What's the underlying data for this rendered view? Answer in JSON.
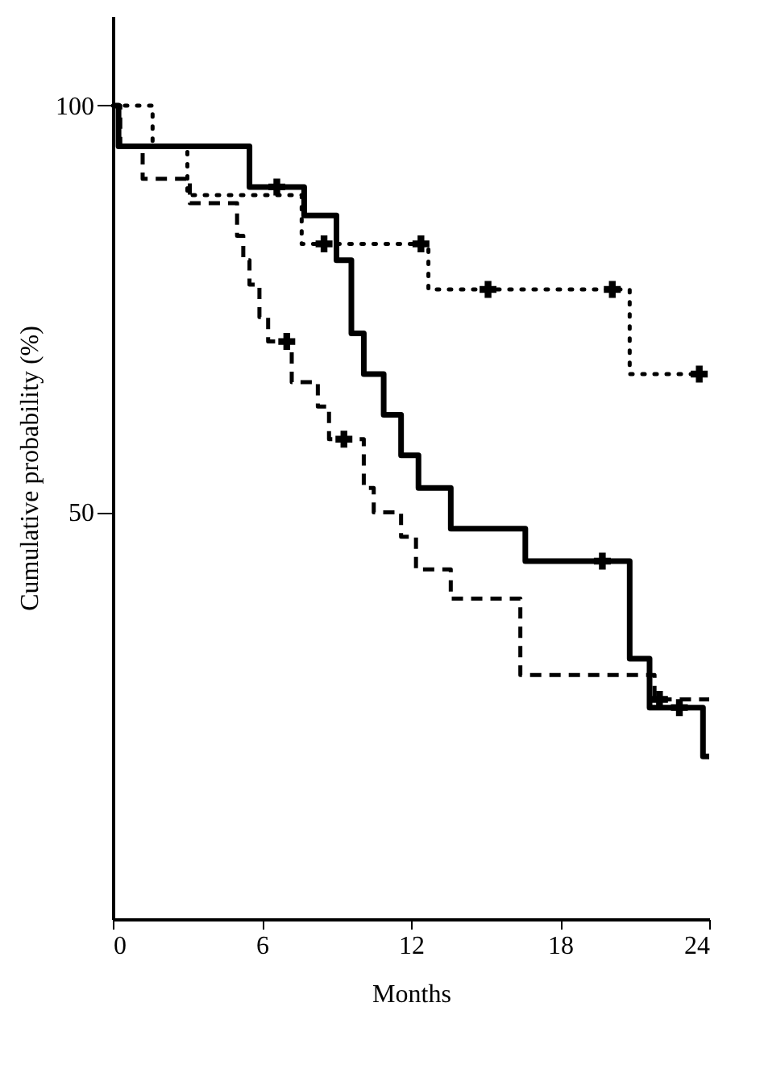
{
  "chart_data": {
    "type": "step",
    "xlabel": "Months",
    "ylabel": "Cumulative probability (%)",
    "xlim": [
      0,
      24
    ],
    "xticks": [
      0,
      6,
      12,
      18,
      24
    ],
    "ylim": [
      0,
      111
    ],
    "yticks": [
      50,
      100
    ],
    "grid": false,
    "legend": false,
    "series": [
      {
        "type": "step",
        "color": "#000000",
        "line_style": "solid",
        "x": [
          0,
          0.23,
          5.5,
          7.7,
          9.0,
          9.6,
          10.1,
          10.9,
          11.6,
          12.3,
          13.6,
          16.6,
          20.8,
          21.6,
          23.75,
          24
        ],
        "values": [
          100,
          95,
          90,
          86.5,
          81,
          72,
          67,
          62,
          57,
          53,
          48,
          44,
          32,
          26,
          20,
          20
        ]
      },
      {
        "type": "step",
        "color": "#000000",
        "line_style": "dotted",
        "x": [
          0,
          1.6,
          3.0,
          7.6,
          12.7,
          20.8,
          24
        ],
        "values": [
          100,
          95,
          89,
          83,
          77.4,
          67,
          67
        ]
      },
      {
        "type": "step",
        "color": "#000000",
        "line_style": "dashed",
        "x": [
          0,
          0.3,
          1.2,
          3.1,
          5.0,
          5.25,
          5.5,
          5.9,
          6.25,
          7.2,
          8.25,
          8.7,
          10.1,
          10.5,
          11.6,
          12.2,
          13.6,
          16.4,
          21.8,
          24
        ],
        "values": [
          100,
          95,
          91,
          88,
          84,
          81,
          78,
          74,
          71,
          66,
          63,
          59,
          53,
          50,
          47,
          43,
          39.4,
          30,
          27,
          27
        ]
      },
      {
        "type": "scatter",
        "marker": "cross",
        "color": "#000000",
        "x": [
          6.6,
          19.7,
          22.8
        ],
        "values": [
          90,
          44,
          26
        ]
      },
      {
        "type": "scatter",
        "marker": "cross",
        "color": "#000000",
        "x": [
          8.5,
          12.4,
          15.1,
          20.1,
          23.6
        ],
        "values": [
          83,
          83,
          77.4,
          77.4,
          67
        ]
      },
      {
        "type": "scatter",
        "marker": "cross",
        "color": "#000000",
        "x": [
          7.0,
          9.3,
          22.0
        ],
        "values": [
          71,
          59,
          27
        ]
      }
    ]
  }
}
